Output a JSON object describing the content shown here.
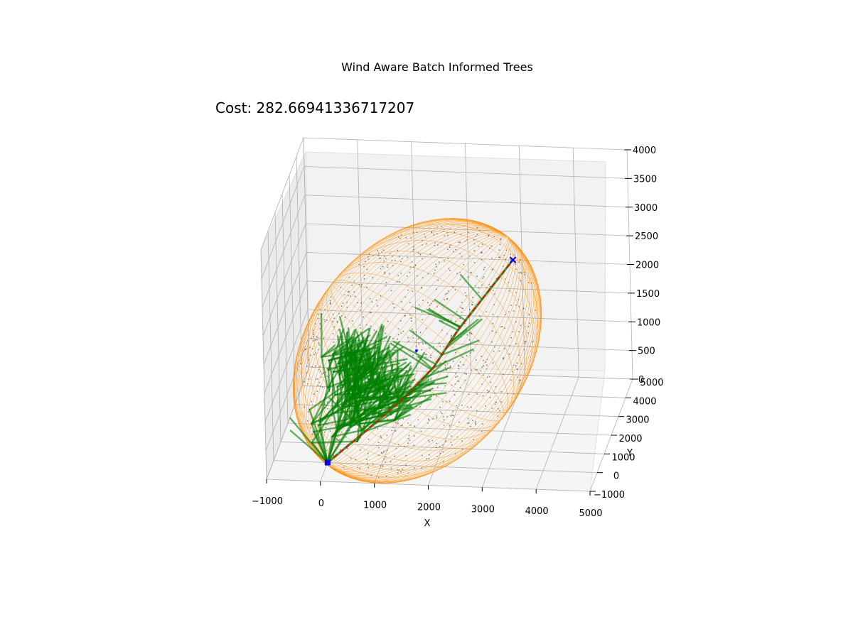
{
  "chart_data": {
    "type": "scatter",
    "projection": "3d",
    "title": "Wind Aware Batch Informed Trees",
    "annotation": "Cost: 282.66941336717207",
    "xlabel": "X",
    "ylabel": "Y",
    "zlabel": "",
    "xlim": [
      -1000,
      5000
    ],
    "ylim": [
      -1000,
      5000
    ],
    "zlim": [
      0,
      4000
    ],
    "x_ticks": [
      "−1000",
      "0",
      "1000",
      "2000",
      "3000",
      "4000",
      "5000"
    ],
    "y_ticks": [
      "−1000",
      "0",
      "1000",
      "2000",
      "3000",
      "4000",
      "5000"
    ],
    "z_ticks": [
      "0",
      "500",
      "1000",
      "1500",
      "2000",
      "2500",
      "3000",
      "3500",
      "4000"
    ],
    "grid": true,
    "start": {
      "x": 0,
      "y": 0,
      "z": 0,
      "marker": "square",
      "color": "#0000ff"
    },
    "goal": {
      "x": 3000,
      "y": 3800,
      "z": 2400,
      "marker": "x",
      "color": "#0000ff"
    },
    "path": {
      "color": "#cc2200",
      "points": [
        {
          "x": 0,
          "y": 0,
          "z": 0
        },
        {
          "x": 600,
          "y": 800,
          "z": 300
        },
        {
          "x": 1200,
          "y": 1500,
          "z": 650
        },
        {
          "x": 1700,
          "y": 2200,
          "z": 1000
        },
        {
          "x": 2100,
          "y": 2700,
          "z": 1500
        },
        {
          "x": 2500,
          "y": 3200,
          "z": 1900
        },
        {
          "x": 3000,
          "y": 3800,
          "z": 2400
        }
      ]
    },
    "tree_color": "#008000",
    "ellipsoid_color": "#ff8c00",
    "samples_color": "#555555",
    "colors": {
      "start_goal": "#0000ff",
      "tree": "#008000",
      "ellipsoid": "#ff8c00",
      "path": "#cc2200",
      "samples": "#555555"
    }
  }
}
